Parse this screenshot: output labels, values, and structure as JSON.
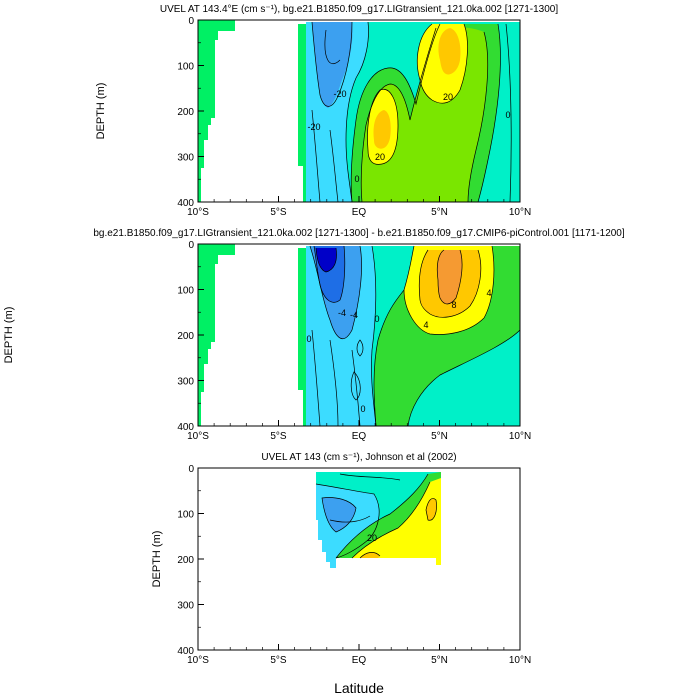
{
  "figure": {
    "x_axis_label": "Latitude"
  },
  "palette": {
    "v_lt_m60": "#0000c8",
    "v_m60_m40": "#1e6ee6",
    "v_m40_m20": "#3ca0f0",
    "v_m20_0": "#3cdcff",
    "v_0_20": "#00f0c8",
    "v_20_40": "#32dc32",
    "v_40_60": "#7ae600",
    "v_60_80": "#ffff00",
    "v_80_100": "#ffc800",
    "v_gt_100": "#f59a32",
    "land": "#00f064",
    "contour": "#000000"
  },
  "chart_data": [
    {
      "type": "contour",
      "title": "UVEL AT 143.4°E (cm s⁻¹), bg.e21.B1850.f09_g17.LIGtransient_121.0ka.002 [1271-1300]",
      "ylabel": "DEPTH (m)",
      "xlim": [
        -10,
        10
      ],
      "ylim": [
        400,
        0
      ],
      "xticks": [
        "10°S",
        "5°S",
        "EQ",
        "5°N",
        "10°N"
      ],
      "yticks": [
        "0",
        "100",
        "200",
        "300",
        "400"
      ],
      "contour_labels": [
        "-20",
        "-20",
        "0",
        "20",
        "20",
        "0"
      ],
      "features": [
        "westward undercurrent core near 4°S–3°S at 0–150 m",
        "eastward jet near 1°N at 150–250 m exceeding 20 cm/s",
        "eastward surface current near 5°N exceeding 20 cm/s",
        "land / topography west of 6.2°S"
      ]
    },
    {
      "type": "contour",
      "title": "bg.e21.B1850.f09_g17.LIGtransient_121.0ka.002 [1271-1300] - b.e21.B1850.f09_g17.CMIP6-piControl.001 [1171-1200]",
      "ylabel": "DEPTH (m)",
      "xlim": [
        -10,
        10
      ],
      "ylim": [
        400,
        0
      ],
      "xticks": [
        "10°S",
        "5°S",
        "EQ",
        "5°N",
        "10°N"
      ],
      "yticks": [
        "0",
        "100",
        "200",
        "300",
        "400"
      ],
      "contour_labels": [
        "-4",
        "-4",
        "0",
        "0",
        "0",
        "4",
        "4",
        "8"
      ],
      "features": [
        "strongest negative anomaly near 4°S at the surface",
        "positive anomaly centered near 5°N, 0–200 m"
      ]
    },
    {
      "type": "contour",
      "title": "UVEL AT 143 (cm s⁻¹), Johnson et al (2002)",
      "ylabel": "DEPTH (m)",
      "xlim": [
        -10,
        10
      ],
      "ylim": [
        400,
        0
      ],
      "xticks": [
        "10°S",
        "5°S",
        "EQ",
        "5°N",
        "10°N"
      ],
      "yticks": [
        "0",
        "100",
        "200",
        "300",
        "400"
      ],
      "contour_labels": [
        "20"
      ],
      "features": [
        "observations cover roughly 3.8°S to 5°N, 0–220 m",
        "eastward undercurrent near 1°N at 150–210 m"
      ]
    }
  ]
}
